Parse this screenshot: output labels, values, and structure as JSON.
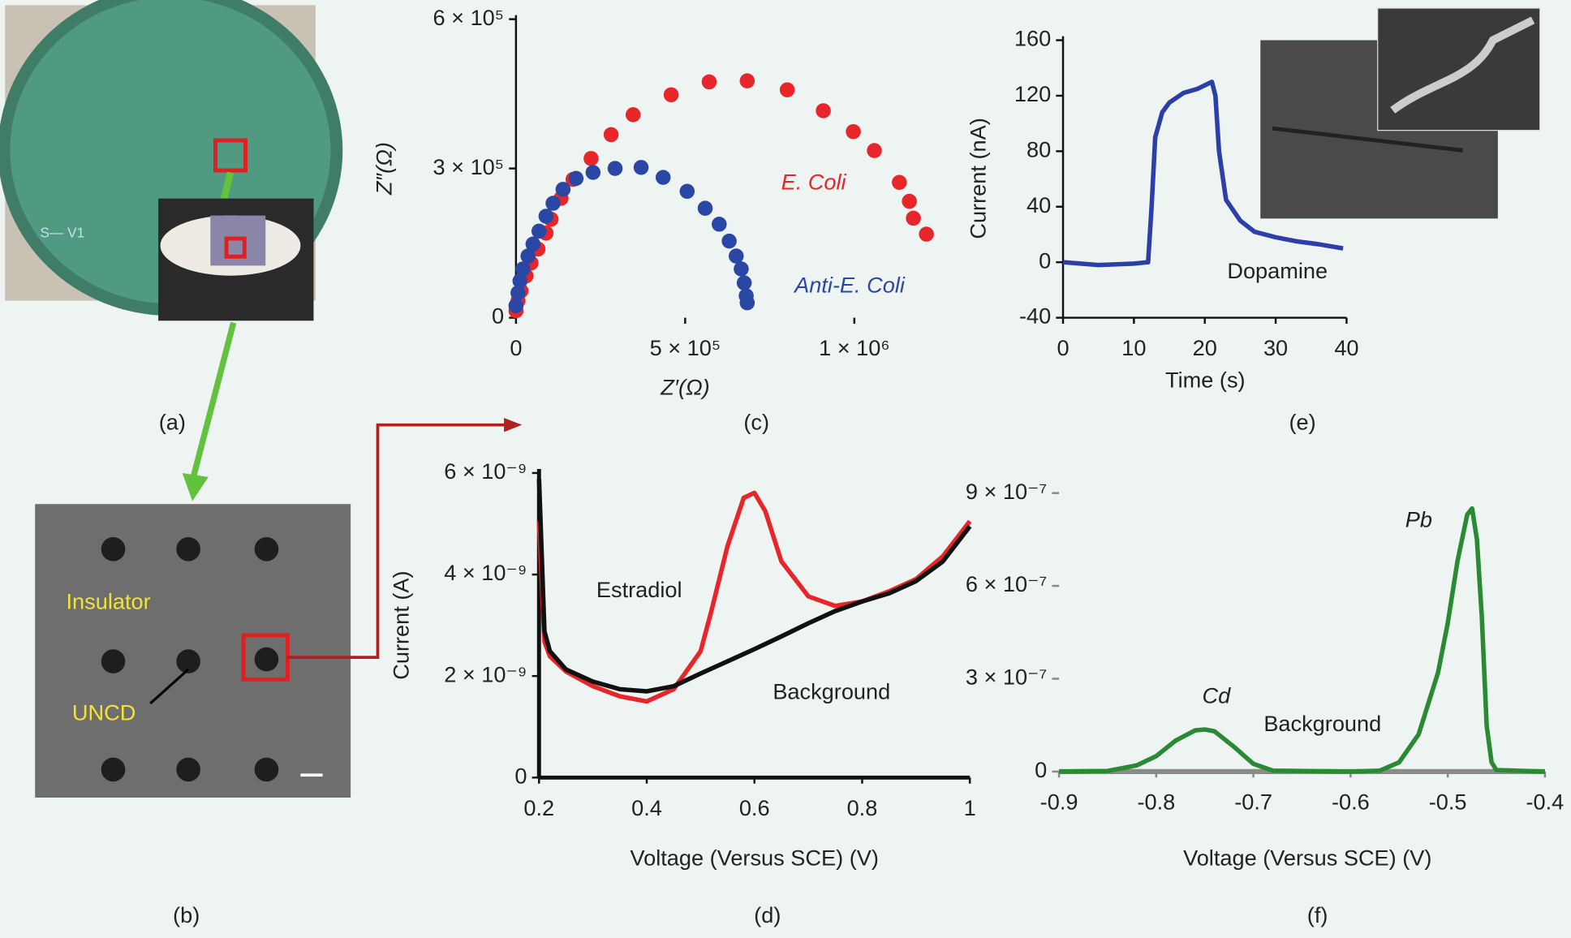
{
  "figure": {
    "panels": [
      {
        "label": "(a)",
        "texts": [
          "S— V1"
        ]
      },
      {
        "label": "(b)",
        "texts": [
          "Insulator",
          "UNCD"
        ]
      }
    ]
  },
  "chart_data": [
    {
      "type": "scatter",
      "panel_label": "(c)",
      "x_label": "Z′(Ω)",
      "y_label": "Z″(Ω)",
      "xlim": [
        0,
        1300000
      ],
      "ylim": [
        0,
        600000
      ],
      "xticks": [
        0,
        {
          "value": 500000,
          "label": "5 × 10⁵"
        },
        {
          "value": 1000000,
          "label": "1 × 10⁶"
        }
      ],
      "yticks": [
        0,
        {
          "value": 300000,
          "label": "3 × 10⁵"
        },
        {
          "value": 600000,
          "label": "6 × 10⁵"
        }
      ],
      "annotations": [
        {
          "text": "E. Coli",
          "color": "#e8262a"
        },
        {
          "text": "Anti-E. Coli",
          "color": "#2b47a6"
        }
      ],
      "series": [
        {
          "color": "#e8262a",
          "x": [
            0,
            5900,
            14800,
            29600,
            44400,
            65100,
            88800,
            103600,
            133100,
            168600,
            221900,
            281100,
            346200,
            458600,
            571000,
            683400,
            801800,
            908300,
            997000,
            1059200,
            1133100,
            1162700,
            1174600,
            1213000
          ],
          "values": [
            14000,
            34000,
            54000,
            84000,
            110000,
            138000,
            170000,
            198000,
            240000,
            278000,
            320000,
            368000,
            408000,
            448000,
            474000,
            476000,
            458000,
            416000,
            374000,
            336000,
            272000,
            234000,
            200000,
            168000
          ]
        },
        {
          "color": "#2b47a6",
          "x": [
            0,
            5900,
            11800,
            20700,
            35500,
            50300,
            68000,
            88800,
            109500,
            139100,
            177500,
            227800,
            292900,
            369800,
            434900,
            505900,
            559200,
            600600,
            630200,
            650900,
            665700,
            674600,
            680500,
            683400
          ],
          "values": [
            24000,
            50000,
            74000,
            98000,
            124000,
            148000,
            174000,
            204000,
            230000,
            258000,
            280000,
            292000,
            300000,
            302000,
            282000,
            254000,
            220000,
            188000,
            154000,
            124000,
            98000,
            70000,
            44000,
            30000
          ]
        }
      ]
    },
    {
      "type": "line",
      "panel_label": "(d)",
      "x_label": "Voltage (Versus SCE) (V)",
      "y_label": "Current (A)",
      "xlim": [
        0.2,
        1
      ],
      "ylim": [
        0,
        6e-09
      ],
      "xticks": [
        0.2,
        0.4,
        0.6,
        0.8,
        1
      ],
      "yticks": [
        0,
        {
          "value": 2e-09,
          "label": "2 × 10⁻⁹"
        },
        {
          "value": 4e-09,
          "label": "4 × 10⁻⁹"
        },
        {
          "value": 6e-09,
          "label": "6 × 10⁻⁹"
        }
      ],
      "annotations": [
        {
          "text": "Estradiol",
          "color": "#222222"
        },
        {
          "text": "Background",
          "color": "#222222"
        }
      ],
      "series": [
        {
          "color": "#e8262a",
          "x": [
            0.2,
            0.21,
            0.22,
            0.25,
            0.3,
            0.35,
            0.4,
            0.45,
            0.5,
            0.52,
            0.55,
            0.58,
            0.6,
            0.62,
            0.65,
            0.7,
            0.75,
            0.8,
            0.85,
            0.9,
            0.95,
            1.0
          ],
          "values": [
            5.05e-09,
            2.68e-09,
            2.39e-09,
            2.09e-09,
            1.8e-09,
            1.6e-09,
            1.5e-09,
            1.74e-09,
            2.49e-09,
            3.28e-09,
            4.56e-09,
            5.51e-09,
            5.61e-09,
            5.25e-09,
            4.26e-09,
            3.57e-09,
            3.38e-09,
            3.47e-09,
            3.67e-09,
            3.91e-09,
            4.36e-09,
            5.05e-09
          ]
        },
        {
          "color": "#111111",
          "x": [
            0.2,
            0.21,
            0.22,
            0.25,
            0.3,
            0.35,
            0.4,
            0.45,
            0.5,
            0.55,
            0.6,
            0.65,
            0.7,
            0.75,
            0.8,
            0.85,
            0.9,
            0.95,
            1.0
          ],
          "values": [
            5.88e-09,
            2.88e-09,
            2.49e-09,
            2.13e-09,
            1.89e-09,
            1.74e-09,
            1.7e-09,
            1.8e-09,
            2.05e-09,
            2.29e-09,
            2.53e-09,
            2.78e-09,
            3.04e-09,
            3.28e-09,
            3.47e-09,
            3.63e-09,
            3.87e-09,
            4.26e-09,
            4.95e-09
          ]
        }
      ]
    },
    {
      "type": "line",
      "panel_label": "(e)",
      "x_label": "Time (s)",
      "y_label": "Current (nA)",
      "xlim": [
        0,
        40
      ],
      "ylim": [
        -40,
        160
      ],
      "xticks": [
        0,
        10,
        20,
        30,
        40
      ],
      "yticks": [
        -40,
        0,
        40,
        80,
        120,
        160
      ],
      "annotations": [
        {
          "text": "Dopamine",
          "color": "#222222"
        }
      ],
      "series": [
        {
          "color": "#2c3ea8",
          "x": [
            0,
            5,
            10,
            12,
            12.5,
            13,
            14,
            15,
            17,
            19,
            21,
            21.5,
            22,
            23,
            25,
            27,
            30,
            33,
            36,
            39.5
          ],
          "values": [
            0,
            -2,
            -1,
            0,
            40,
            90,
            108,
            115,
            122,
            125,
            130,
            120,
            80,
            45,
            30,
            22,
            18,
            15,
            13,
            10
          ]
        }
      ]
    },
    {
      "type": "line",
      "panel_label": "(f)",
      "x_label": "Voltage (Versus SCE) (V)",
      "xlim": [
        -0.9,
        -0.4
      ],
      "ylim": [
        0,
        9e-07
      ],
      "xticks": [
        -0.9,
        -0.8,
        -0.7,
        -0.6,
        -0.5,
        -0.4
      ],
      "yticks": [
        0,
        {
          "value": 3e-07,
          "label": "3 × 10⁻⁷"
        },
        {
          "value": 6e-07,
          "label": "6 × 10⁻⁷"
        },
        {
          "value": 9e-07,
          "label": "9 × 10⁻⁷"
        }
      ],
      "annotations": [
        {
          "text": "Cd",
          "color": "#222222"
        },
        {
          "text": "Pb",
          "color": "#222222"
        },
        {
          "text": "Background",
          "color": "#222222"
        }
      ],
      "series": [
        {
          "color": "#8a8a8a",
          "x": [
            -0.9,
            -0.4
          ],
          "values": [
            0,
            0
          ]
        },
        {
          "color": "#2a8a34",
          "x": [
            -0.9,
            -0.85,
            -0.82,
            -0.8,
            -0.78,
            -0.76,
            -0.75,
            -0.74,
            -0.72,
            -0.7,
            -0.68,
            -0.6,
            -0.57,
            -0.55,
            -0.53,
            -0.51,
            -0.5,
            -0.49,
            -0.48,
            -0.475,
            -0.47,
            -0.465,
            -0.46,
            -0.455,
            -0.45,
            -0.4
          ],
          "values": [
            0,
            2e-09,
            2e-08,
            5e-08,
            1e-07,
            1.33e-07,
            1.36e-07,
            1.3e-07,
            8e-08,
            2.5e-08,
            3e-09,
            0,
            3e-09,
            3e-08,
            1.2e-07,
            3.2e-07,
            4.8e-07,
            6.8e-07,
            8.3e-07,
            8.5e-07,
            7.5e-07,
            5e-07,
            1.5e-07,
            3e-08,
            5e-09,
            0
          ]
        }
      ]
    }
  ]
}
